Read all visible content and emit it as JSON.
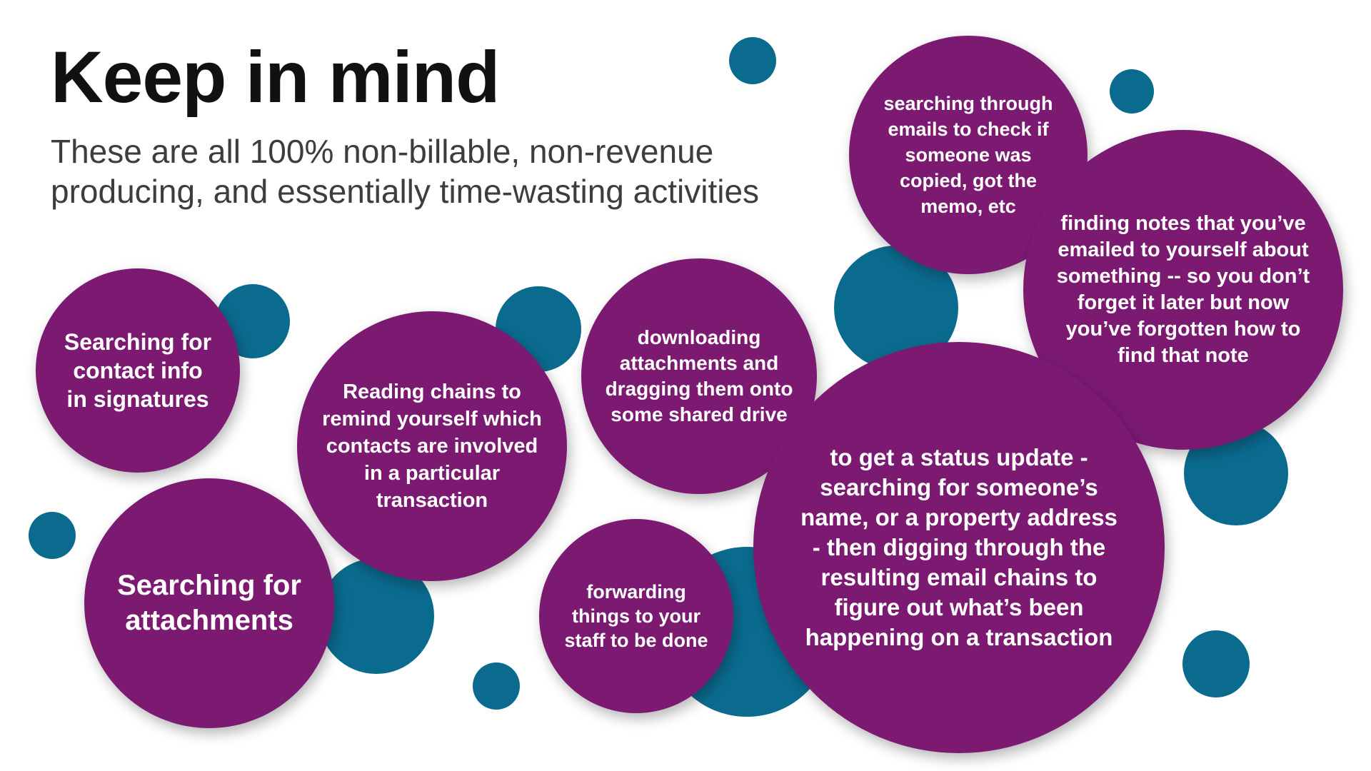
{
  "title": "Keep in mind",
  "subtitle": "These are all 100% non-billable, non-revenue producing, and essentially time-wasting activities",
  "colors": {
    "bubble": "#7c1a72",
    "dot": "#0b6b8f",
    "title": "#111111",
    "subtitle": "#3d3d3d"
  },
  "activities": {
    "contact_info": "Searching for contact info in signatures",
    "attachments": "Searching for attachments",
    "reading_chains": "Reading chains to remind yourself which contacts are involved in a particular transaction",
    "downloading": "downloading attachments and dragging them onto some shared drive",
    "forwarding": "forwarding things to your staff to be done",
    "searching_emails": "searching through emails to check if someone was copied, got the memo, etc",
    "finding_notes": "finding notes that you’ve emailed to yourself about something -- so you don’t forget it later but now you’ve forgotten how to find that note",
    "status_update": "to get a status update - searching for someone’s name, or a property address - then digging through the resulting email chains to figure out what’s been happening on a transaction"
  }
}
